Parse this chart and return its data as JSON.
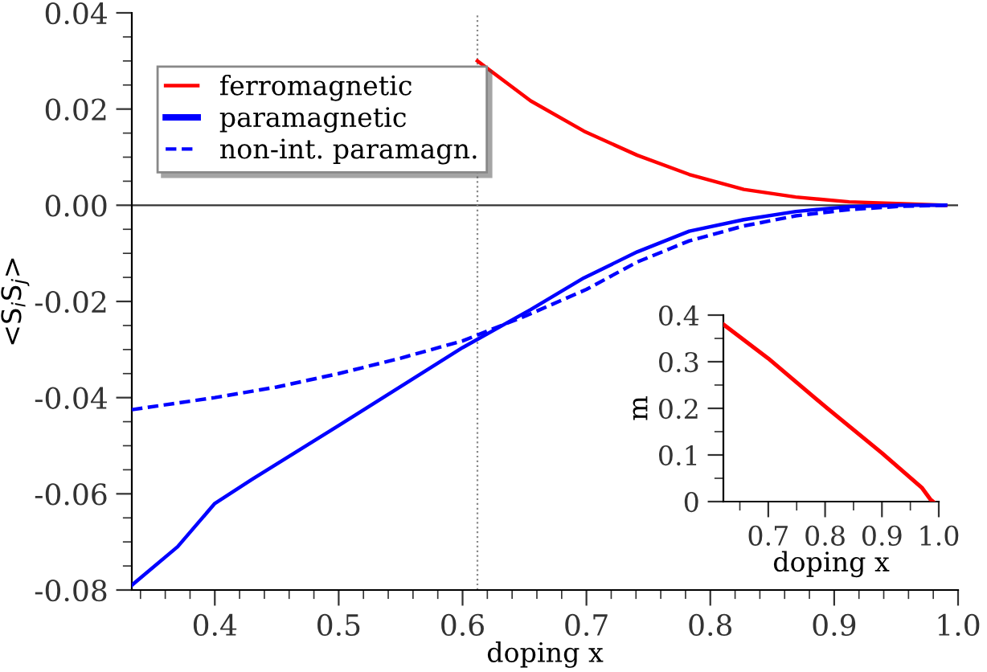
{
  "chart_data": [
    {
      "type": "line",
      "xlabel": "doping x",
      "ylabel": "<S$_{i}$S$_{j}$>",
      "xlim": [
        0.333,
        1.0
      ],
      "ylim": [
        -0.08,
        0.04
      ],
      "xticks": [
        0.4,
        0.5,
        0.6,
        0.7,
        0.8,
        0.9,
        {
          "value": 1,
          "label": "1.0"
        }
      ],
      "yticks": [
        {
          "value": -0.08,
          "label": "-0.08"
        },
        {
          "value": -0.06,
          "label": "-0.06"
        },
        {
          "value": -0.04,
          "label": "-0.04"
        },
        {
          "value": -0.02,
          "label": "-0.02"
        },
        {
          "value": 0.0,
          "label": "0.00"
        },
        {
          "value": 0.02,
          "label": "0.02"
        },
        {
          "value": 0.04,
          "label": "0.04"
        }
      ],
      "grid": false,
      "legend": "top left",
      "ref_lines": [
        {
          "axis": "y",
          "value": 0,
          "color": "#333333",
          "line_style": "solid"
        },
        {
          "axis": "x",
          "value": 0.612,
          "color": "#888888",
          "line_style": "dotted"
        }
      ],
      "series": [
        {
          "name": "ferromagnetic",
          "color": "#ff0000",
          "line_style": "solid",
          "x": [
            0.612,
            0.655,
            0.698,
            0.741,
            0.783,
            0.827,
            0.869,
            0.912,
            0.955,
            0.99
          ],
          "values": [
            0.03,
            0.0217,
            0.0154,
            0.0104,
            0.0064,
            0.0033,
            0.0017,
            0.0007,
            0.0003,
            0.0
          ]
        },
        {
          "name": "paramagnetic",
          "color": "#0000ff",
          "line_style": "solid",
          "x": [
            0.333,
            0.37,
            0.4,
            0.43,
            0.5,
            0.6,
            0.655,
            0.698,
            0.741,
            0.783,
            0.827,
            0.869,
            0.912,
            0.955,
            0.99
          ],
          "values": [
            -0.079,
            -0.071,
            -0.062,
            -0.057,
            -0.0458,
            -0.0296,
            -0.0217,
            -0.0151,
            -0.0097,
            -0.0054,
            -0.003,
            -0.0013,
            -0.0003,
            0.0,
            0.0
          ]
        },
        {
          "name": "non-int. paramagn.",
          "color": "#0000ff",
          "line_style": "dashed",
          "x": [
            0.333,
            0.4,
            0.45,
            0.5,
            0.55,
            0.6,
            0.651,
            0.7,
            0.741,
            0.783,
            0.827,
            0.869,
            0.912,
            0.955,
            0.99
          ],
          "values": [
            -0.0425,
            -0.04,
            -0.0378,
            -0.035,
            -0.0318,
            -0.0282,
            -0.023,
            -0.0175,
            -0.0118,
            -0.0074,
            -0.0043,
            -0.0022,
            -0.0009,
            -0.0002,
            0.0
          ]
        }
      ]
    },
    {
      "type": "line",
      "xlabel": "doping x",
      "ylabel": "m",
      "xlim": [
        0.621,
        1.0
      ],
      "ylim": [
        0,
        0.4
      ],
      "xticks": [
        0.7,
        0.8,
        0.9,
        {
          "value": 1,
          "label": "1.0"
        }
      ],
      "yticks": [
        0,
        0.1,
        0.2,
        0.3,
        0.4
      ],
      "grid": false,
      "series": [
        {
          "color": "#ff0000",
          "line_style": "solid",
          "x": [
            0.621,
            0.7,
            0.8,
            0.9,
            0.97,
            0.985,
            0.99
          ],
          "values": [
            0.38,
            0.307,
            0.204,
            0.104,
            0.03,
            0.005,
            0.0
          ]
        }
      ]
    }
  ]
}
